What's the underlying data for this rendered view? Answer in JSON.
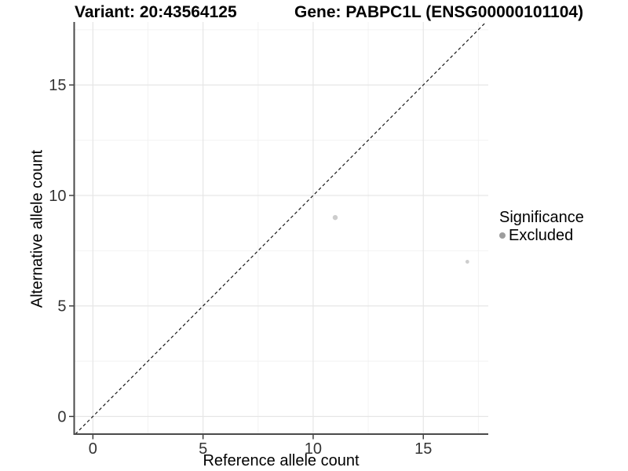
{
  "header": {
    "variant_title": "Variant: 20:43564125",
    "gene_title": "Gene: PABPC1L (ENSG00000101104)"
  },
  "chart_data": {
    "type": "scatter",
    "title": "Variant: 20:43564125   Gene: PABPC1L (ENSG00000101104)",
    "xlabel": "Reference allele count",
    "ylabel": "Alternative allele count",
    "xlim": [
      -0.85,
      17.95
    ],
    "ylim": [
      -0.8,
      17.85
    ],
    "x_ticks": [
      0,
      5,
      10,
      15
    ],
    "y_ticks": [
      0,
      5,
      10,
      15
    ],
    "minor_ticks": [
      2.5,
      7.5,
      12.5,
      17.5
    ],
    "grid": "major and minor gridlines on white background",
    "points": [
      {
        "x": 11,
        "y": 9,
        "r": 3.2,
        "significance": "Excluded"
      },
      {
        "x": 17,
        "y": 7,
        "r": 2.4,
        "significance": "Excluded"
      }
    ],
    "identity_line": {
      "slope": 1,
      "intercept": 0,
      "style": "dashed",
      "color": "#1a1a1a"
    },
    "legend": {
      "title": "Significance",
      "position": "right",
      "items": [
        {
          "label": "Excluded",
          "color": "#9d9d9d"
        }
      ]
    },
    "colors": {
      "point_fill": "#cdcdcd",
      "grid_major": "#e6e6e6",
      "grid_minor": "#f2f2f2",
      "axis_line": "#4a4a4a",
      "tick_mark": "#333333",
      "tick_label": "#333333",
      "background": "#ffffff"
    }
  }
}
